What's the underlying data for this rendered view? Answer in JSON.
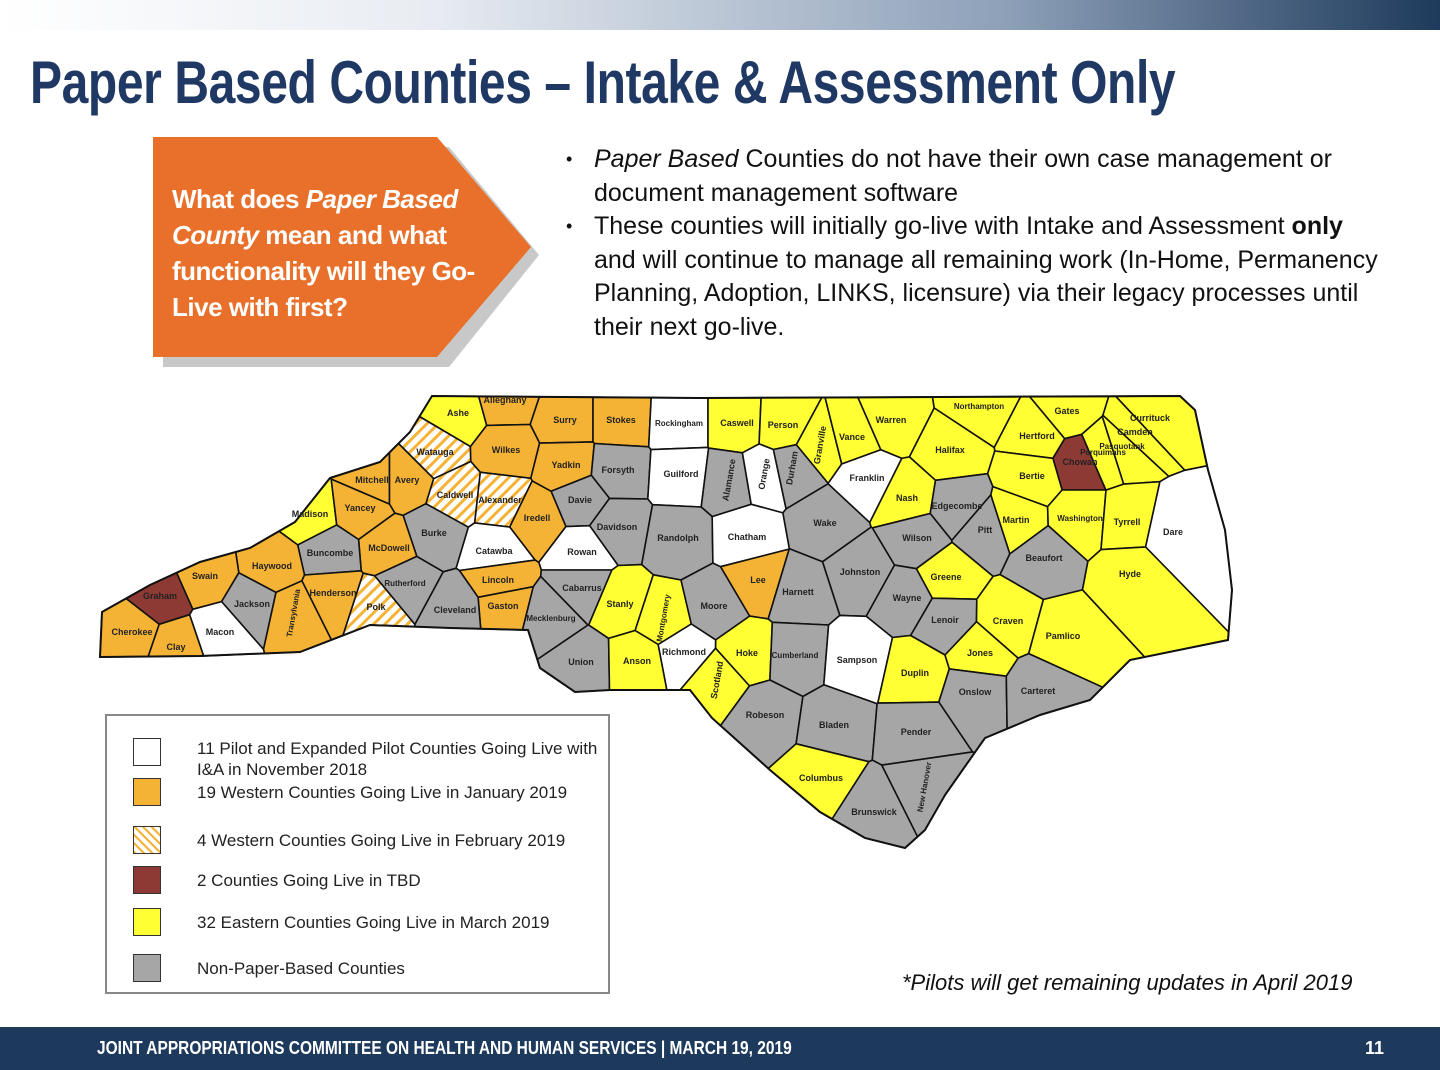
{
  "title": "Paper Based Counties – Intake & Assessment Only",
  "callout": {
    "color": "#e8702a",
    "parts": [
      {
        "text": "What does ",
        "style": "normal"
      },
      {
        "text": "Paper Based County",
        "style": "italic"
      },
      {
        "text": " mean and what functionality will they Go-Live with first?",
        "style": "normal"
      }
    ]
  },
  "bullets": [
    [
      {
        "text": "Paper Based",
        "style": "italic"
      },
      {
        "text": " Counties do not have their own case management or document management software",
        "style": "normal"
      }
    ],
    [
      {
        "text": "These counties will initially go-live with Intake and Assessment ",
        "style": "normal"
      },
      {
        "text": "only",
        "style": "bold"
      },
      {
        "text": " and will continue to manage all remaining work (In-Home, Permanency Planning, Adoption, LINKS, licensure) via their legacy processes until their next go-live.",
        "style": "normal"
      }
    ]
  ],
  "legend": [
    {
      "key": "pilot",
      "label": "11 Pilot and Expanded Pilot Counties Going Live with I&A in November 2018",
      "color": "#ffffff"
    },
    {
      "key": "jan",
      "label": "19 Western Counties Going Live in January 2019",
      "color": "#f5b335"
    },
    {
      "key": "feb",
      "label": "4 Western Counties Going Live in February 2019",
      "color": "hatched"
    },
    {
      "key": "tbd",
      "label": "2 Counties Going Live in TBD",
      "color": "#8e3a34"
    },
    {
      "key": "mar",
      "label": "32 Eastern Counties Going Live in March 2019",
      "color": "#ffff33"
    },
    {
      "key": "non",
      "label": "Non-Paper-Based Counties",
      "color": "#a6a6a6"
    }
  ],
  "counties": [
    {
      "name": "Ashe",
      "status": "mar"
    },
    {
      "name": "Alleghany",
      "status": "jan"
    },
    {
      "name": "Surry",
      "status": "jan"
    },
    {
      "name": "Stokes",
      "status": "jan"
    },
    {
      "name": "Rockingham",
      "status": "pilot"
    },
    {
      "name": "Caswell",
      "status": "mar"
    },
    {
      "name": "Person",
      "status": "mar"
    },
    {
      "name": "Granville",
      "status": "mar"
    },
    {
      "name": "Vance",
      "status": "mar"
    },
    {
      "name": "Warren",
      "status": "mar"
    },
    {
      "name": "Northampton",
      "status": "mar"
    },
    {
      "name": "Gates",
      "status": "mar"
    },
    {
      "name": "Hertford",
      "status": "mar"
    },
    {
      "name": "Currituck",
      "status": "mar"
    },
    {
      "name": "Camden",
      "status": "mar"
    },
    {
      "name": "Pasquotank",
      "status": "mar"
    },
    {
      "name": "Perquimans",
      "status": "mar"
    },
    {
      "name": "Chowan",
      "status": "tbd"
    },
    {
      "name": "Watauga",
      "status": "feb"
    },
    {
      "name": "Wilkes",
      "status": "jan"
    },
    {
      "name": "Yadkin",
      "status": "jan"
    },
    {
      "name": "Forsyth",
      "status": "non"
    },
    {
      "name": "Guilford",
      "status": "pilot"
    },
    {
      "name": "Alamance",
      "status": "non"
    },
    {
      "name": "Orange",
      "status": "pilot"
    },
    {
      "name": "Durham",
      "status": "non"
    },
    {
      "name": "Franklin",
      "status": "pilot"
    },
    {
      "name": "Halifax",
      "status": "mar"
    },
    {
      "name": "Bertie",
      "status": "mar"
    },
    {
      "name": "Mitchell",
      "status": "jan"
    },
    {
      "name": "Avery",
      "status": "jan"
    },
    {
      "name": "Caldwell",
      "status": "feb"
    },
    {
      "name": "Alexander",
      "status": "feb"
    },
    {
      "name": "Davie",
      "status": "non"
    },
    {
      "name": "Madison",
      "status": "mar"
    },
    {
      "name": "Yancey",
      "status": "jan"
    },
    {
      "name": "Iredell",
      "status": "jan"
    },
    {
      "name": "Davidson",
      "status": "non"
    },
    {
      "name": "Randolph",
      "status": "non"
    },
    {
      "name": "Chatham",
      "status": "pilot"
    },
    {
      "name": "Wake",
      "status": "non"
    },
    {
      "name": "Nash",
      "status": "mar"
    },
    {
      "name": "Edgecombe",
      "status": "non"
    },
    {
      "name": "Martin",
      "status": "mar"
    },
    {
      "name": "Washington",
      "status": "mar"
    },
    {
      "name": "Tyrrell",
      "status": "mar"
    },
    {
      "name": "Dare",
      "status": "pilot"
    },
    {
      "name": "Burke",
      "status": "non"
    },
    {
      "name": "McDowell",
      "status": "jan"
    },
    {
      "name": "Buncombe",
      "status": "non"
    },
    {
      "name": "Catawba",
      "status": "pilot"
    },
    {
      "name": "Rowan",
      "status": "pilot"
    },
    {
      "name": "Wilson",
      "status": "non"
    },
    {
      "name": "Pitt",
      "status": "non"
    },
    {
      "name": "Beaufort",
      "status": "non"
    },
    {
      "name": "Hyde",
      "status": "mar"
    },
    {
      "name": "Haywood",
      "status": "jan"
    },
    {
      "name": "Swain",
      "status": "jan"
    },
    {
      "name": "Johnston",
      "status": "non"
    },
    {
      "name": "Greene",
      "status": "mar"
    },
    {
      "name": "Harnett",
      "status": "non"
    },
    {
      "name": "Lee",
      "status": "jan"
    },
    {
      "name": "Lincoln",
      "status": "jan"
    },
    {
      "name": "Rutherford",
      "status": "non"
    },
    {
      "name": "Cabarrus",
      "status": "non"
    },
    {
      "name": "Henderson",
      "status": "jan"
    },
    {
      "name": "Graham",
      "status": "tbd"
    },
    {
      "name": "Gaston",
      "status": "jan"
    },
    {
      "name": "Stanly",
      "status": "mar"
    },
    {
      "name": "Montgomery",
      "status": "mar"
    },
    {
      "name": "Moore",
      "status": "non"
    },
    {
      "name": "Jackson",
      "status": "non"
    },
    {
      "name": "Polk",
      "status": "feb"
    },
    {
      "name": "Cleveland",
      "status": "non"
    },
    {
      "name": "Mecklenburg",
      "status": "non"
    },
    {
      "name": "Wayne",
      "status": "non"
    },
    {
      "name": "Lenoir",
      "status": "non"
    },
    {
      "name": "Craven",
      "status": "mar"
    },
    {
      "name": "Pamlico",
      "status": "mar"
    },
    {
      "name": "Transylvania",
      "status": "jan"
    },
    {
      "name": "Cherokee",
      "status": "jan"
    },
    {
      "name": "Macon",
      "status": "pilot"
    },
    {
      "name": "Clay",
      "status": "jan"
    },
    {
      "name": "Union",
      "status": "non"
    },
    {
      "name": "Anson",
      "status": "mar"
    },
    {
      "name": "Richmond",
      "status": "pilot"
    },
    {
      "name": "Scotland",
      "status": "mar"
    },
    {
      "name": "Hoke",
      "status": "mar"
    },
    {
      "name": "Cumberland",
      "status": "non"
    },
    {
      "name": "Sampson",
      "status": "pilot"
    },
    {
      "name": "Duplin",
      "status": "mar"
    },
    {
      "name": "Jones",
      "status": "mar"
    },
    {
      "name": "Onslow",
      "status": "non"
    },
    {
      "name": "Carteret",
      "status": "non"
    },
    {
      "name": "Robeson",
      "status": "non"
    },
    {
      "name": "Bladen",
      "status": "non"
    },
    {
      "name": "Pender",
      "status": "non"
    },
    {
      "name": "Columbus",
      "status": "mar"
    },
    {
      "name": "Brunswick",
      "status": "non"
    },
    {
      "name": "New Hanover",
      "status": "non"
    }
  ],
  "note": "*Pilots will get remaining updates in April 2019",
  "footer": {
    "text": "JOINT APPROPRIATIONS COMMITTEE ON HEALTH AND HUMAN SERVICES | MARCH 19, 2019",
    "page": "11"
  }
}
